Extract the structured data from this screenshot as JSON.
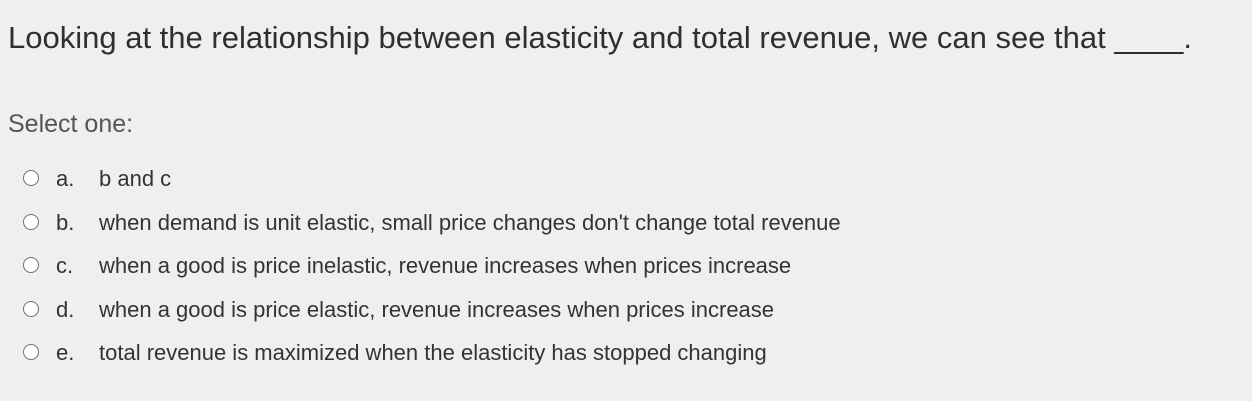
{
  "question": {
    "text": "Looking at the relationship between elasticity and total revenue, we can see that ____."
  },
  "prompt": "Select one:",
  "answers": [
    {
      "letter": "a.",
      "text": "b and c"
    },
    {
      "letter": "b.",
      "text": "when demand is unit elastic, small price changes don't change total revenue"
    },
    {
      "letter": "c.",
      "text": "when a good is price inelastic, revenue increases when prices increase"
    },
    {
      "letter": "d.",
      "text": "when a good is price elastic, revenue increases when prices increase"
    },
    {
      "letter": "e.",
      "text": "total revenue is maximized when the elasticity has stopped changing"
    }
  ]
}
